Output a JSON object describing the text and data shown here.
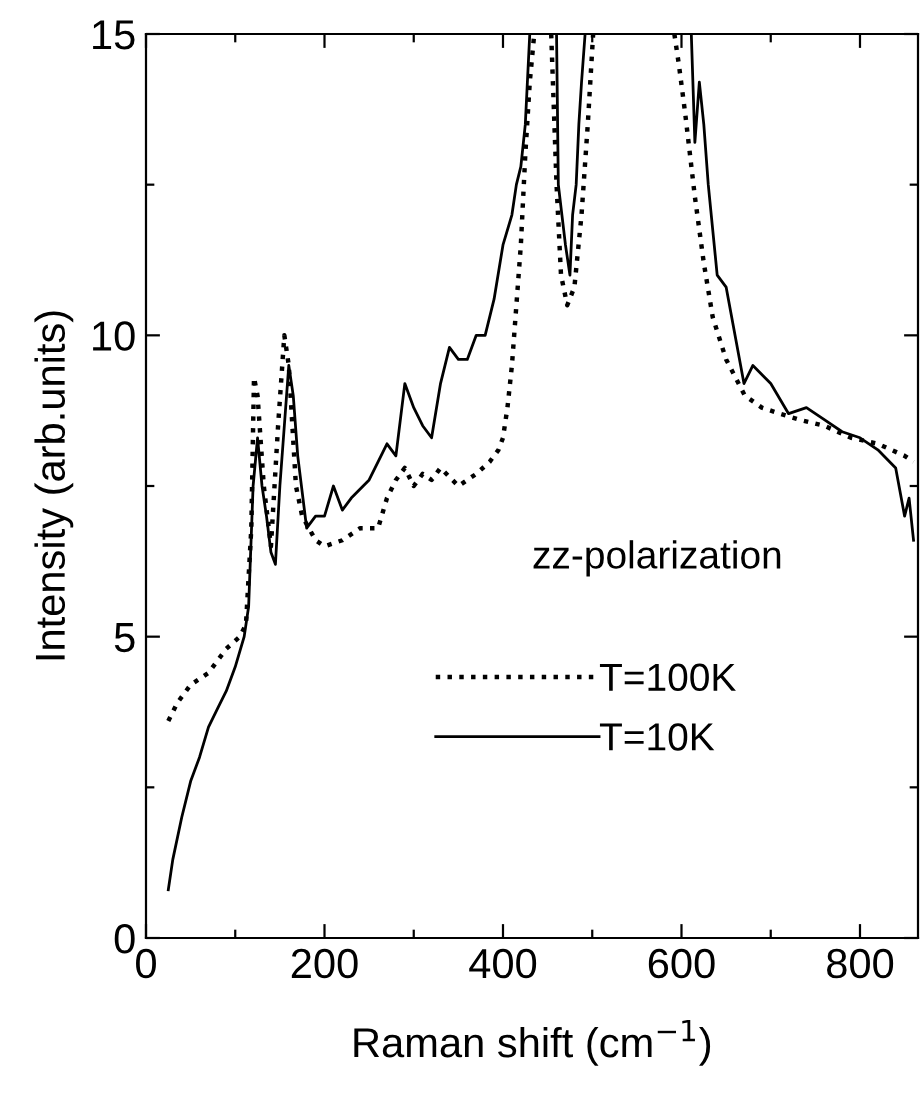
{
  "chart_data": {
    "type": "line",
    "xlabel": "Raman shift (cm$^{−1}$)",
    "ylabel": "Intensity (arb.units)",
    "annotations": [
      "zz-polarization"
    ],
    "xlim": [
      0,
      865
    ],
    "ylim": [
      0,
      15
    ],
    "xticks": [
      0,
      {
        "value": 100,
        "label": null
      },
      200,
      {
        "value": 300,
        "label": null
      },
      400,
      {
        "value": 500,
        "label": null
      },
      600,
      {
        "value": 700,
        "label": null
      },
      800
    ],
    "yticks": [
      0,
      {
        "value": 2.5,
        "label": null
      },
      5,
      {
        "value": 7.5,
        "label": null
      },
      10,
      {
        "value": 12.5,
        "label": null
      },
      15
    ],
    "grid": false,
    "legend": "bottom",
    "marker": "none",
    "series": [
      {
        "name": "T=100K",
        "color": "#000000",
        "line_style": "dotted",
        "x": [
          25,
          35,
          50,
          70,
          90,
          105,
          112,
          118,
          121,
          125,
          132,
          140,
          148,
          155,
          160,
          168,
          175,
          190,
          200,
          220,
          240,
          260,
          270,
          280,
          290,
          300,
          310,
          320,
          330,
          350,
          370,
          385,
          395,
          400,
          405,
          410,
          415,
          420,
          425,
          430,
          435,
          450,
          454,
          460,
          465,
          472,
          480,
          488,
          495,
          501,
          560,
          592,
          597,
          604,
          615,
          625,
          635,
          650,
          671,
          690,
          710,
          732,
          760,
          790,
          820,
          850,
          860
        ],
        "values": [
          3.6,
          3.9,
          4.2,
          4.4,
          4.8,
          5.0,
          5.2,
          6.8,
          9.3,
          9.0,
          7.5,
          6.5,
          8.5,
          10.0,
          9.5,
          7.5,
          7.0,
          6.6,
          6.5,
          6.6,
          6.8,
          6.8,
          7.3,
          7.6,
          7.8,
          7.5,
          7.7,
          7.6,
          7.8,
          7.5,
          7.7,
          7.9,
          8.1,
          8.3,
          8.8,
          9.5,
          10.5,
          11.5,
          13,
          14.2,
          15,
          null,
          15,
          12.5,
          11,
          10.5,
          10.8,
          12,
          13.5,
          15,
          null,
          15,
          14.5,
          13.7,
          12.3,
          11.2,
          10.3,
          9.6,
          9.0,
          8.8,
          8.7,
          8.6,
          8.5,
          8.3,
          8.2,
          8.0,
          7.9
        ]
      },
      {
        "name": "T=10K",
        "color": "#000000",
        "line_style": "solid",
        "x": [
          25,
          30,
          40,
          50,
          60,
          70,
          80,
          90,
          100,
          110,
          115,
          120,
          125,
          130,
          135,
          140,
          145,
          150,
          155,
          160,
          165,
          170,
          180,
          190,
          200,
          210,
          220,
          230,
          250,
          270,
          280,
          290,
          300,
          310,
          320,
          330,
          340,
          350,
          360,
          370,
          380,
          390,
          400,
          410,
          415,
          420,
          425,
          430,
          445,
          460,
          462,
          466,
          470,
          475,
          478,
          482,
          485,
          488,
          492,
          560,
          611,
          615,
          620,
          625,
          630,
          640,
          650,
          660,
          670,
          680,
          700,
          720,
          740,
          760,
          780,
          800,
          820,
          840,
          850,
          855,
          860
        ],
        "values": [
          0.8,
          1.3,
          2.0,
          2.6,
          3.0,
          3.5,
          3.8,
          4.1,
          4.5,
          5.0,
          5.5,
          7.5,
          8.3,
          7.5,
          7.0,
          6.4,
          6.2,
          7.5,
          8.5,
          9.5,
          9.0,
          8.0,
          6.8,
          7.0,
          7.0,
          7.5,
          7.1,
          7.3,
          7.6,
          8.2,
          8.0,
          9.2,
          8.8,
          8.5,
          8.3,
          9.2,
          9.8,
          9.6,
          9.6,
          10.0,
          10.0,
          10.6,
          11.5,
          12.0,
          12.5,
          12.8,
          13.5,
          15,
          null,
          15,
          12.5,
          12.0,
          11.5,
          11.0,
          12.0,
          12.5,
          13.5,
          14.2,
          15,
          null,
          15,
          13.2,
          14.2,
          13.5,
          12.5,
          11.0,
          10.8,
          10.0,
          9.2,
          9.5,
          9.2,
          8.7,
          8.8,
          8.6,
          8.4,
          8.3,
          8.1,
          7.8,
          7.0,
          7.3,
          6.6
        ]
      }
    ]
  }
}
